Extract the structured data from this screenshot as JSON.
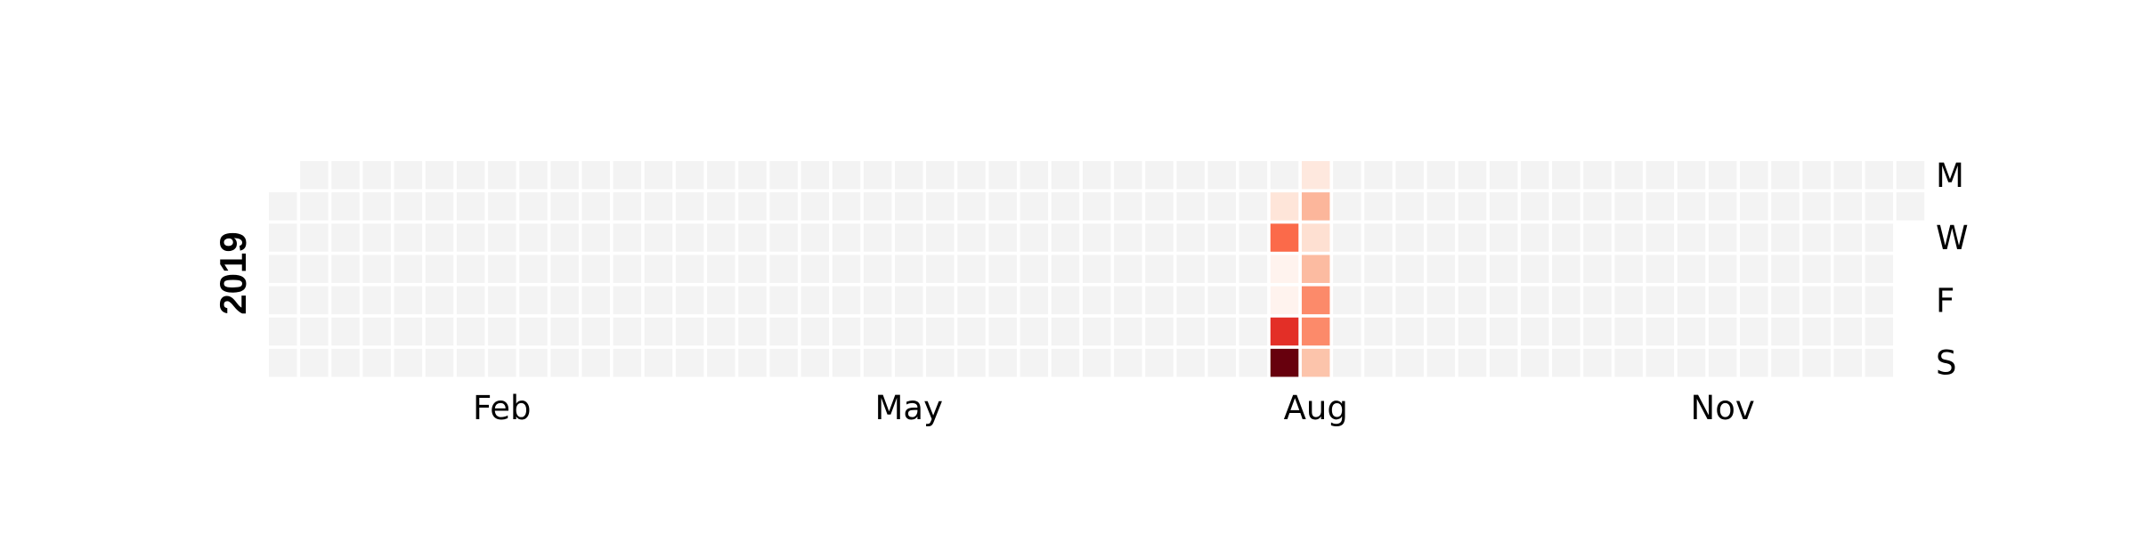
{
  "chart_data": {
    "type": "heatmap",
    "year_label": "2019",
    "year": 2019,
    "month_labels": [
      {
        "label": "Feb",
        "week": 7
      },
      {
        "label": "May",
        "week": 20
      },
      {
        "label": "Aug",
        "week": 33
      },
      {
        "label": "Nov",
        "week": 46
      }
    ],
    "weekday_labels": [
      {
        "label": "M",
        "day": 0
      },
      {
        "label": "W",
        "day": 2
      },
      {
        "label": "F",
        "day": 4
      },
      {
        "label": "S",
        "day": 6
      }
    ],
    "empty_color": "#f3f3f3",
    "colormap": "Reds",
    "active_cells": [
      {
        "date": "2019-08-13",
        "color": "#fee5d9"
      },
      {
        "date": "2019-08-14",
        "color": "#fb6a4a"
      },
      {
        "date": "2019-08-15",
        "color": "#fff3ee"
      },
      {
        "date": "2019-08-16",
        "color": "#fff3ee"
      },
      {
        "date": "2019-08-17",
        "color": "#e32f27"
      },
      {
        "date": "2019-08-18",
        "color": "#67000d"
      },
      {
        "date": "2019-08-19",
        "color": "#fee8de"
      },
      {
        "date": "2019-08-20",
        "color": "#fcb69b"
      },
      {
        "date": "2019-08-21",
        "color": "#fee0d2"
      },
      {
        "date": "2019-08-22",
        "color": "#fcbba1"
      },
      {
        "date": "2019-08-23",
        "color": "#fc8a6a"
      },
      {
        "date": "2019-08-24",
        "color": "#fc8a6a"
      },
      {
        "date": "2019-08-25",
        "color": "#fcc4ab"
      }
    ]
  }
}
